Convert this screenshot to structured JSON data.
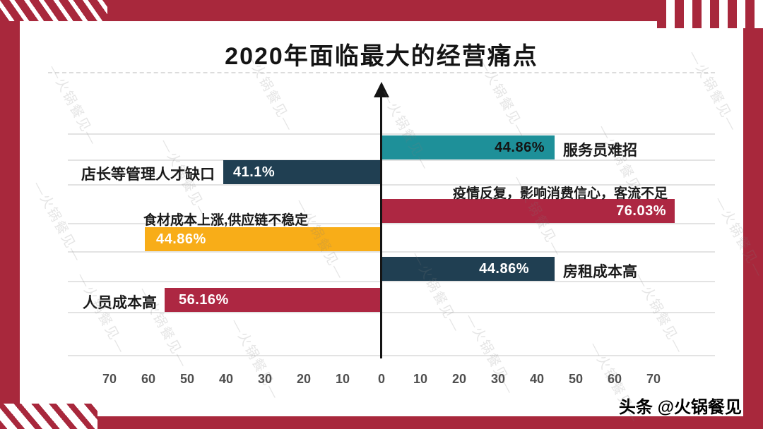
{
  "page": {
    "title": "2020年面临最大的经营痛点",
    "watermark_text": "—火锅餐见—",
    "footer_attribution": "头条 @火锅餐见"
  },
  "colors": {
    "frame_red": "#a8283c",
    "teal": "#1e9099",
    "navy": "#203f52",
    "crimson": "#ad2742",
    "yellow": "#f8ad18",
    "grid_gray": "#e3e3e3"
  },
  "chart_data": {
    "type": "bar",
    "variant": "diverging-horizontal",
    "title": "2020年面临最大的经营痛点",
    "unit": "percent",
    "grid": true,
    "axis_ticks": [
      "70",
      "60",
      "50",
      "40",
      "30",
      "20",
      "10",
      "0",
      "10",
      "20",
      "30",
      "40",
      "50",
      "60",
      "70"
    ],
    "series": [
      {
        "label": "服务员难招",
        "value": 44.86,
        "value_display": "44.86%",
        "side": "right",
        "color": "#1e9099",
        "value_text_color": "#141414",
        "label_position": "right-of-bar"
      },
      {
        "label": "店长等管理人才缺口",
        "value": 41.1,
        "value_display": "41.1%",
        "side": "left",
        "color": "#203f52",
        "value_text_color": "#ffffff",
        "label_position": "left-of-bar"
      },
      {
        "label": "疫情反复，影响消费信心，客流不足",
        "value": 76.03,
        "value_display": "76.03%",
        "side": "right",
        "color": "#ad2742",
        "value_text_color": "#ffffff",
        "label_position": "above-bar"
      },
      {
        "label": "食材成本上涨,供应链不稳定",
        "value": 44.86,
        "value_display": "44.86%",
        "side": "left",
        "color": "#f8ad18",
        "value_text_color": "#ffffff",
        "label_position": "above-bar"
      },
      {
        "label": "房租成本高",
        "value": 44.86,
        "value_display": "44.86%",
        "side": "right",
        "color": "#203f52",
        "value_text_color": "#ffffff",
        "label_position": "right-of-bar"
      },
      {
        "label": "人员成本高",
        "value": 56.16,
        "value_display": "56.16%",
        "side": "left",
        "color": "#ad2742",
        "value_text_color": "#ffffff",
        "label_position": "left-of-bar"
      }
    ]
  }
}
